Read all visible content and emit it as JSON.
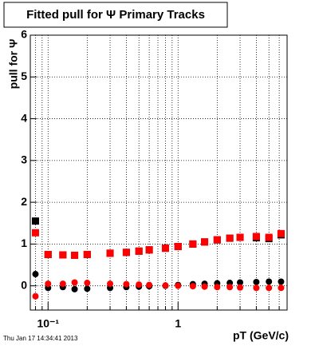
{
  "chart_data": {
    "type": "scatter",
    "title": "Fitted pull for Ψ  Primary Tracks",
    "x_label": "pT (GeV/c)",
    "y_label": "pull for Ψ",
    "timestamp": "Thu Jan 17 14:34:41 2013",
    "x": [
      0.08,
      0.1,
      0.13,
      0.16,
      0.2,
      0.3,
      0.4,
      0.5,
      0.6,
      0.8,
      1,
      1.3,
      1.6,
      2,
      2.5,
      3,
      4,
      5,
      6.2
    ],
    "series": [
      {
        "color": "#000000",
        "marker": "square",
        "values": [
          1.55,
          0.75,
          0.74,
          0.73,
          0.75,
          0.78,
          0.8,
          0.83,
          0.86,
          0.9,
          0.94,
          1.0,
          1.05,
          1.1,
          1.14,
          1.16,
          1.15,
          1.13,
          1.22
        ]
      },
      {
        "color": "#ff0000",
        "marker": "square",
        "values": [
          1.27,
          0.75,
          0.74,
          0.73,
          0.75,
          0.78,
          0.8,
          0.83,
          0.86,
          0.9,
          0.94,
          1.0,
          1.05,
          1.1,
          1.14,
          1.16,
          1.18,
          1.16,
          1.25
        ]
      },
      {
        "color": "#000000",
        "marker": "circle",
        "values": [
          0.28,
          -0.05,
          -0.03,
          -0.08,
          -0.07,
          -0.05,
          -0.03,
          -0.02,
          -0.01,
          0.0,
          0.02,
          0.04,
          0.05,
          0.06,
          0.07,
          0.08,
          0.09,
          0.1,
          0.1
        ]
      },
      {
        "color": "#ff0000",
        "marker": "circle",
        "values": [
          -0.25,
          0.05,
          0.05,
          0.08,
          0.07,
          0.05,
          0.04,
          0.03,
          0.02,
          0.01,
          0.0,
          -0.01,
          -0.02,
          -0.03,
          -0.03,
          -0.04,
          -0.05,
          -0.05,
          -0.05
        ]
      }
    ],
    "xscale": "log",
    "xlim": [
      0.073,
      6.9
    ],
    "xticks": [
      {
        "value": 0.1,
        "label": "10⁻¹"
      },
      1
    ],
    "xminor": [
      0.08,
      0.09,
      0.2,
      0.3,
      0.4,
      0.5,
      0.6,
      0.7,
      0.8,
      0.9,
      2,
      3,
      4,
      5,
      6
    ],
    "ylim": [
      -0.58,
      6
    ],
    "yticks": [
      0,
      1,
      2,
      3,
      4,
      5,
      6
    ],
    "grid": true
  }
}
